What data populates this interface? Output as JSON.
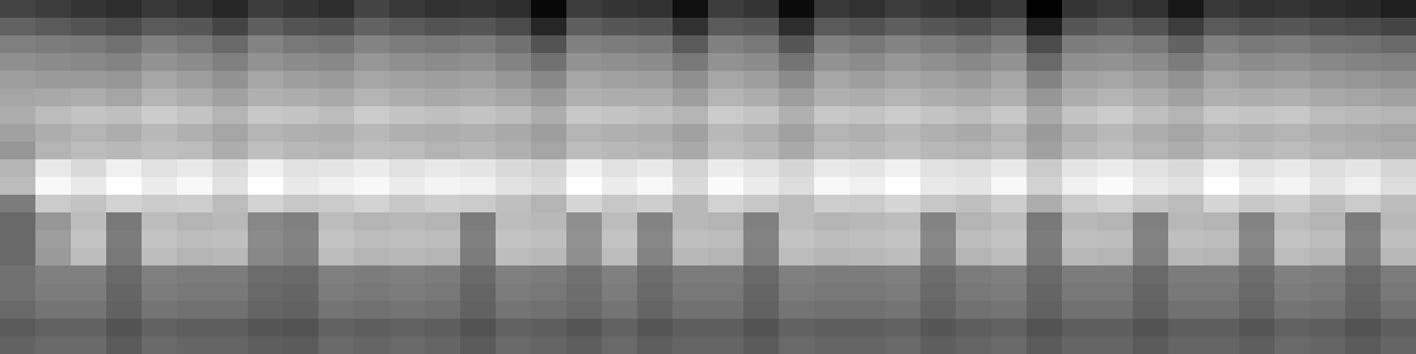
{
  "chart_data": {
    "type": "heatmap",
    "tick_labels": false,
    "cells": [
      [
        30,
        28,
        26,
        24,
        27,
        25,
        22,
        28,
        26,
        24,
        30,
        27,
        25,
        26,
        24,
        14,
        28,
        26,
        25,
        16,
        28,
        26,
        15,
        27,
        25,
        28,
        26,
        24,
        27,
        12,
        26,
        28,
        25,
        18,
        27,
        25,
        26,
        24,
        23,
        20
      ],
      [
        38,
        36,
        34,
        32,
        36,
        35,
        30,
        37,
        34,
        33,
        38,
        36,
        34,
        35,
        32,
        22,
        37,
        35,
        34,
        25,
        36,
        35,
        24,
        36,
        34,
        37,
        35,
        33,
        36,
        20,
        35,
        37,
        34,
        28,
        36,
        34,
        35,
        33,
        32,
        30
      ],
      [
        46,
        45,
        44,
        42,
        46,
        44,
        40,
        47,
        44,
        43,
        47,
        45,
        44,
        45,
        42,
        34,
        46,
        45,
        44,
        36,
        46,
        44,
        35,
        46,
        44,
        47,
        45,
        43,
        46,
        32,
        45,
        46,
        44,
        38,
        46,
        44,
        45,
        43,
        42,
        40
      ],
      [
        50,
        49,
        48,
        47,
        51,
        49,
        46,
        51,
        49,
        48,
        52,
        50,
        49,
        50,
        47,
        42,
        51,
        50,
        49,
        44,
        51,
        49,
        43,
        51,
        49,
        52,
        50,
        48,
        51,
        40,
        50,
        51,
        49,
        45,
        51,
        49,
        50,
        48,
        47,
        46
      ],
      [
        54,
        53,
        53,
        52,
        56,
        54,
        51,
        56,
        54,
        53,
        56,
        55,
        54,
        55,
        52,
        48,
        56,
        55,
        54,
        50,
        56,
        54,
        49,
        56,
        54,
        56,
        55,
        53,
        56,
        47,
        55,
        56,
        54,
        51,
        56,
        54,
        55,
        53,
        52,
        51
      ],
      [
        56,
        57,
        58,
        56,
        60,
        58,
        55,
        59,
        58,
        57,
        60,
        58,
        57,
        58,
        56,
        53,
        59,
        58,
        58,
        54,
        60,
        58,
        54,
        59,
        58,
        60,
        58,
        57,
        59,
        52,
        58,
        60,
        58,
        55,
        59,
        58,
        59,
        57,
        56,
        55
      ],
      [
        58,
        62,
        64,
        63,
        66,
        64,
        60,
        65,
        64,
        62,
        66,
        64,
        63,
        64,
        62,
        58,
        65,
        64,
        63,
        60,
        66,
        64,
        59,
        65,
        64,
        66,
        64,
        62,
        65,
        57,
        64,
        66,
        63,
        60,
        65,
        64,
        65,
        62,
        61,
        60
      ],
      [
        55,
        58,
        60,
        58,
        61,
        59,
        56,
        60,
        59,
        58,
        61,
        59,
        58,
        59,
        57,
        54,
        60,
        59,
        58,
        55,
        61,
        59,
        55,
        60,
        59,
        61,
        59,
        57,
        60,
        53,
        59,
        61,
        58,
        56,
        60,
        59,
        60,
        58,
        57,
        56
      ],
      [
        52,
        60,
        62,
        61,
        63,
        62,
        58,
        63,
        61,
        60,
        63,
        62,
        60,
        61,
        59,
        56,
        62,
        61,
        60,
        57,
        63,
        61,
        57,
        62,
        61,
        63,
        61,
        60,
        62,
        55,
        61,
        63,
        60,
        58,
        62,
        61,
        62,
        60,
        59,
        58
      ],
      [
        60,
        74,
        70,
        76,
        72,
        74,
        70,
        76,
        72,
        73,
        75,
        72,
        74,
        73,
        70,
        68,
        76,
        72,
        74,
        68,
        75,
        72,
        69,
        74,
        73,
        76,
        72,
        71,
        74,
        66,
        73,
        75,
        72,
        70,
        76,
        72,
        74,
        71,
        73,
        69
      ],
      [
        62,
        78,
        74,
        80,
        75,
        78,
        72,
        80,
        74,
        76,
        78,
        75,
        77,
        76,
        72,
        70,
        80,
        75,
        78,
        70,
        79,
        75,
        71,
        78,
        76,
        80,
        74,
        73,
        78,
        68,
        76,
        79,
        74,
        72,
        80,
        75,
        77,
        73,
        76,
        71
      ],
      [
        45,
        66,
        64,
        68,
        66,
        67,
        62,
        68,
        65,
        66,
        68,
        65,
        67,
        66,
        63,
        60,
        69,
        65,
        67,
        61,
        68,
        65,
        62,
        67,
        66,
        69,
        65,
        63,
        67,
        58,
        66,
        68,
        64,
        62,
        69,
        65,
        67,
        63,
        66,
        62
      ],
      [
        40,
        52,
        62,
        44,
        62,
        60,
        61,
        48,
        46,
        62,
        60,
        61,
        60,
        45,
        62,
        61,
        50,
        62,
        47,
        61,
        60,
        46,
        62,
        60,
        61,
        62,
        47,
        60,
        62,
        44,
        61,
        60,
        46,
        61,
        60,
        47,
        62,
        60,
        45,
        61
      ],
      [
        40,
        54,
        64,
        45,
        64,
        62,
        63,
        49,
        47,
        64,
        62,
        63,
        62,
        46,
        64,
        63,
        51,
        64,
        48,
        63,
        62,
        47,
        64,
        62,
        63,
        64,
        48,
        62,
        64,
        45,
        63,
        62,
        47,
        63,
        62,
        48,
        64,
        62,
        46,
        63
      ],
      [
        40,
        53,
        62,
        44,
        62,
        60,
        61,
        48,
        46,
        62,
        60,
        61,
        60,
        45,
        62,
        61,
        50,
        62,
        47,
        61,
        60,
        46,
        62,
        60,
        61,
        62,
        47,
        60,
        62,
        44,
        61,
        60,
        46,
        61,
        60,
        47,
        62,
        60,
        45,
        61
      ],
      [
        42,
        46,
        46,
        40,
        46,
        45,
        45,
        41,
        40,
        46,
        45,
        46,
        45,
        40,
        46,
        45,
        42,
        46,
        41,
        45,
        45,
        40,
        46,
        45,
        45,
        46,
        41,
        45,
        46,
        40,
        45,
        45,
        40,
        45,
        45,
        41,
        46,
        45,
        40,
        45
      ],
      [
        42,
        45,
        45,
        39,
        45,
        44,
        44,
        40,
        39,
        45,
        44,
        45,
        44,
        39,
        45,
        44,
        41,
        45,
        40,
        44,
        44,
        39,
        45,
        44,
        44,
        45,
        40,
        44,
        45,
        39,
        44,
        44,
        39,
        44,
        44,
        40,
        45,
        44,
        39,
        44
      ],
      [
        40,
        43,
        43,
        38,
        43,
        42,
        42,
        39,
        38,
        43,
        42,
        43,
        42,
        38,
        43,
        42,
        40,
        43,
        39,
        42,
        42,
        38,
        43,
        42,
        42,
        43,
        39,
        42,
        43,
        38,
        42,
        42,
        38,
        42,
        42,
        39,
        43,
        42,
        38,
        42
      ],
      [
        36,
        38,
        38,
        34,
        38,
        37,
        37,
        35,
        34,
        38,
        37,
        38,
        37,
        34,
        38,
        37,
        35,
        38,
        35,
        37,
        37,
        34,
        38,
        37,
        37,
        38,
        35,
        37,
        38,
        34,
        37,
        37,
        34,
        37,
        37,
        35,
        38,
        37,
        34,
        37
      ],
      [
        38,
        40,
        40,
        36,
        40,
        39,
        39,
        37,
        36,
        40,
        39,
        40,
        39,
        36,
        40,
        39,
        37,
        40,
        37,
        39,
        39,
        36,
        40,
        39,
        39,
        40,
        37,
        39,
        40,
        36,
        39,
        39,
        36,
        39,
        39,
        37,
        40,
        39,
        36,
        39
      ]
    ]
  }
}
